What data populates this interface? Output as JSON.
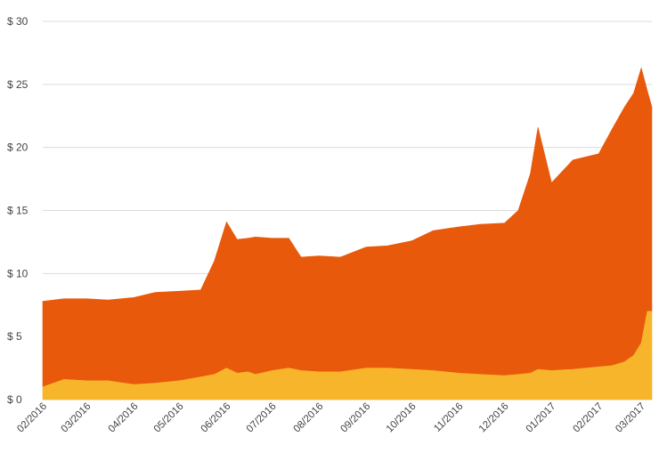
{
  "chart_data": {
    "type": "area",
    "stacked": true,
    "grid": "horizontal",
    "legend": "none",
    "ylim": [
      0,
      30
    ],
    "y_ticks": [
      0,
      5,
      10,
      15,
      20,
      25,
      30
    ],
    "y_tick_labels": [
      "$ 0",
      "$ 5",
      "$ 10",
      "$ 15",
      "$ 20",
      "$ 25",
      "$ 30"
    ],
    "x_tick_labels": [
      "02/2016",
      "03/2016",
      "04/2016",
      "05/2016",
      "06/2016",
      "07/2016",
      "08/2016",
      "09/2016",
      "10/2016",
      "11/2016",
      "12/2016",
      "01/2017",
      "02/2017",
      "03/2017"
    ],
    "x": [
      "2016-02-01",
      "2016-02-15",
      "2016-03-01",
      "2016-03-15",
      "2016-04-01",
      "2016-04-15",
      "2016-05-01",
      "2016-05-15",
      "2016-05-24",
      "2016-06-01",
      "2016-06-08",
      "2016-06-15",
      "2016-06-20",
      "2016-07-01",
      "2016-07-12",
      "2016-07-20",
      "2016-08-01",
      "2016-08-15",
      "2016-09-01",
      "2016-09-15",
      "2016-10-01",
      "2016-10-15",
      "2016-11-01",
      "2016-11-15",
      "2016-12-01",
      "2016-12-10",
      "2016-12-18",
      "2016-12-23",
      "2017-01-01",
      "2017-01-15",
      "2017-02-01",
      "2017-02-10",
      "2017-02-18",
      "2017-02-24",
      "2017-03-01",
      "2017-03-05",
      "2017-03-08"
    ],
    "series": [
      {
        "color": "#f7b52b",
        "values": [
          1.0,
          1.6,
          1.5,
          1.5,
          1.2,
          1.3,
          1.5,
          1.8,
          2.0,
          2.5,
          2.1,
          2.2,
          2.0,
          2.3,
          2.5,
          2.3,
          2.2,
          2.2,
          2.5,
          2.5,
          2.4,
          2.3,
          2.1,
          2.0,
          1.9,
          2.0,
          2.1,
          2.4,
          2.3,
          2.4,
          2.6,
          2.7,
          3.0,
          3.5,
          4.5,
          7.0,
          7.0
        ]
      },
      {
        "color": "#e8590c",
        "values": [
          6.8,
          6.4,
          6.5,
          6.4,
          6.9,
          7.2,
          7.1,
          6.9,
          9.0,
          11.6,
          10.6,
          10.6,
          10.9,
          10.5,
          10.3,
          9.0,
          9.2,
          9.1,
          9.6,
          9.7,
          10.2,
          11.1,
          11.6,
          11.9,
          12.1,
          13.0,
          15.8,
          19.2,
          14.9,
          16.6,
          16.9,
          18.8,
          20.2,
          20.8,
          21.8,
          17.5,
          16.2
        ]
      }
    ]
  }
}
